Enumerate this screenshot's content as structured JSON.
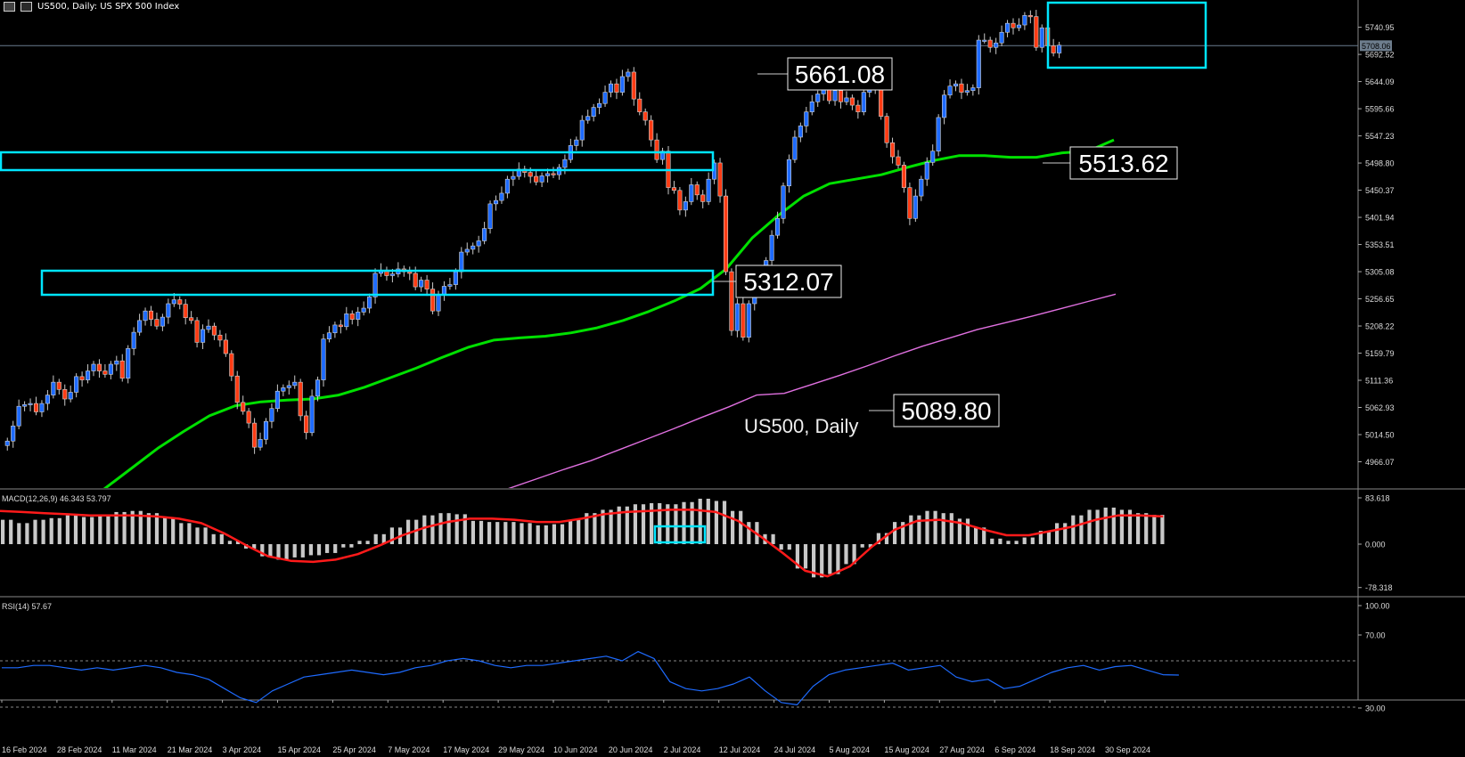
{
  "header": {
    "title": "US500, Daily:  US SPX 500 Index"
  },
  "watermark": "US500, Daily",
  "current_price_label": "5708.06",
  "colors": {
    "bull": "#1e6bff",
    "bear": "#ff3c14",
    "ma_fast": "#00e000",
    "ma_slow": "#e070e0",
    "zones": "#00e5ff",
    "macd_hist": "#c8c8c8",
    "macd_signal": "#ff1a1a",
    "rsi": "#1e6bff"
  },
  "price_axis": {
    "ticks": [
      "5740.95",
      "5692.52",
      "5644.09",
      "5595.66",
      "5547.23",
      "5498.80",
      "5450.37",
      "5401.94",
      "5353.51",
      "5305.08",
      "5256.65",
      "5208.22",
      "5159.79",
      "5111.36",
      "5062.93",
      "5014.50",
      "4966.07"
    ]
  },
  "macd_axis": {
    "ticks": [
      "83.618",
      "0.000",
      "-78.318"
    ]
  },
  "rsi_axis": {
    "ticks": [
      "100.00",
      "70.00",
      "30.00"
    ]
  },
  "date_axis": {
    "labels": [
      "16 Feb 2024",
      "28 Feb 2024",
      "11 Mar 2024",
      "21 Mar 2024",
      "3 Apr 2024",
      "15 Apr 2024",
      "25 Apr 2024",
      "7 May 2024",
      "17 May 2024",
      "29 May 2024",
      "10 Jun 2024",
      "20 Jun 2024",
      "2 Jul 2024",
      "12 Jul 2024",
      "24 Jul 2024",
      "5 Aug 2024",
      "15 Aug 2024",
      "27 Aug 2024",
      "6 Sep 2024",
      "18 Sep 2024",
      "30 Sep 2024"
    ]
  },
  "annotations": [
    "5661.08",
    "5312.07",
    "5089.80",
    "5513.62"
  ],
  "panels": {
    "macd_label": "MACD(12,26,9) 46.343 53.797",
    "rsi_label": "RSI(14) 57.67"
  },
  "chart_data": {
    "type": "candlestick",
    "title": "US500, Daily:  US SPX 500 Index",
    "ylim": [
      4920,
      5790
    ],
    "close": [
      5003,
      5030,
      5065,
      5068,
      5070,
      5055,
      5070,
      5085,
      5108,
      5095,
      5078,
      5090,
      5118,
      5112,
      5128,
      5140,
      5128,
      5122,
      5140,
      5146,
      5115,
      5168,
      5197,
      5218,
      5235,
      5220,
      5208,
      5224,
      5248,
      5255,
      5247,
      5223,
      5218,
      5179,
      5202,
      5208,
      5192,
      5183,
      5159,
      5119,
      5072,
      5056,
      5035,
      4992,
      5006,
      5038,
      5061,
      5092,
      5098,
      5102,
      5108,
      5048,
      5018,
      5083,
      5112,
      5185,
      5196,
      5210,
      5207,
      5230,
      5220,
      5233,
      5240,
      5260,
      5302,
      5308,
      5298,
      5301,
      5310,
      5305,
      5302,
      5278,
      5290,
      5274,
      5235,
      5265,
      5279,
      5282,
      5305,
      5340,
      5345,
      5351,
      5360,
      5382,
      5426,
      5432,
      5445,
      5470,
      5475,
      5488,
      5482,
      5475,
      5465,
      5476,
      5480,
      5478,
      5491,
      5505,
      5530,
      5540,
      5575,
      5582,
      5598,
      5605,
      5625,
      5640,
      5625,
      5653,
      5661,
      5613,
      5590,
      5575,
      5540,
      5505,
      5520,
      5455,
      5450,
      5415,
      5430,
      5460,
      5442,
      5430,
      5470,
      5499,
      5440,
      5305,
      5200,
      5248,
      5188,
      5248,
      5295,
      5300,
      5325,
      5370,
      5400,
      5458,
      5505,
      5545,
      5565,
      5590,
      5608,
      5622,
      5630,
      5610,
      5628,
      5608,
      5615,
      5602,
      5590,
      5625,
      5634,
      5640,
      5582,
      5535,
      5510,
      5495,
      5455,
      5400,
      5440,
      5470,
      5500,
      5520,
      5580,
      5620,
      5636,
      5640,
      5625,
      5628,
      5633,
      5718,
      5718,
      5705,
      5713,
      5732,
      5748,
      5740,
      5745,
      5762,
      5760,
      5705,
      5740,
      5708,
      5695,
      5709
    ],
    "ma_fast": [
      4885,
      4920,
      4955,
      4990,
      5020,
      5048,
      5066,
      5073,
      5076,
      5078,
      5085,
      5099,
      5116,
      5133,
      5152,
      5170,
      5183,
      5187,
      5190,
      5196,
      5205,
      5218,
      5234,
      5253,
      5275,
      5310,
      5365,
      5405,
      5440,
      5462,
      5470,
      5478,
      5491,
      5503,
      5512,
      5512,
      5509,
      5509,
      5517,
      5520,
      5540
    ],
    "ma_slow": [
      4918,
      4935,
      4952,
      4968,
      4987,
      5006,
      5025,
      5045,
      5064,
      5085,
      5088,
      5104,
      5120,
      5137,
      5155,
      5172,
      5187,
      5202,
      5214,
      5226,
      5239,
      5252,
      5265
    ],
    "macd_hist": [
      44,
      38,
      44,
      47,
      52,
      49,
      52,
      58,
      60,
      56,
      48,
      38,
      30,
      18,
      6,
      -8,
      -22,
      -28,
      -24,
      -20,
      -16,
      -6,
      6,
      18,
      30,
      44,
      52,
      56,
      54,
      42,
      40,
      40,
      38,
      34,
      36,
      44,
      56,
      62,
      68,
      72,
      74,
      72,
      76,
      82,
      78,
      60,
      40,
      18,
      -10,
      -44,
      -60,
      -54,
      -36,
      -6,
      20,
      40,
      52,
      60,
      56,
      46,
      30,
      10,
      6,
      12,
      24,
      38,
      52,
      62,
      66,
      62,
      56,
      53
    ],
    "macd_signal": [
      60,
      58,
      56,
      54,
      52,
      52,
      52,
      50,
      46,
      38,
      20,
      -2,
      -22,
      -30,
      -32,
      -28,
      -18,
      -2,
      16,
      30,
      40,
      46,
      46,
      44,
      40,
      40,
      46,
      54,
      58,
      60,
      62,
      62,
      58,
      42,
      14,
      -16,
      -48,
      -58,
      -40,
      -4,
      26,
      42,
      44,
      38,
      26,
      16,
      16,
      24,
      32,
      44,
      52,
      52,
      50
    ],
    "rsi": [
      64,
      64,
      66,
      66,
      64,
      62,
      64,
      62,
      64,
      66,
      64,
      60,
      58,
      54,
      46,
      38,
      34,
      44,
      50,
      56,
      58,
      60,
      62,
      60,
      58,
      60,
      64,
      66,
      70,
      72,
      70,
      66,
      64,
      66,
      66,
      68,
      70,
      72,
      74,
      70,
      78,
      72,
      52,
      46,
      44,
      46,
      50,
      56,
      44,
      34,
      32,
      48,
      58,
      62,
      64,
      66,
      68,
      62,
      64,
      66,
      56,
      52,
      54,
      46,
      48,
      54,
      60,
      64,
      66,
      62,
      65,
      66,
      62,
      58,
      57.67
    ]
  }
}
